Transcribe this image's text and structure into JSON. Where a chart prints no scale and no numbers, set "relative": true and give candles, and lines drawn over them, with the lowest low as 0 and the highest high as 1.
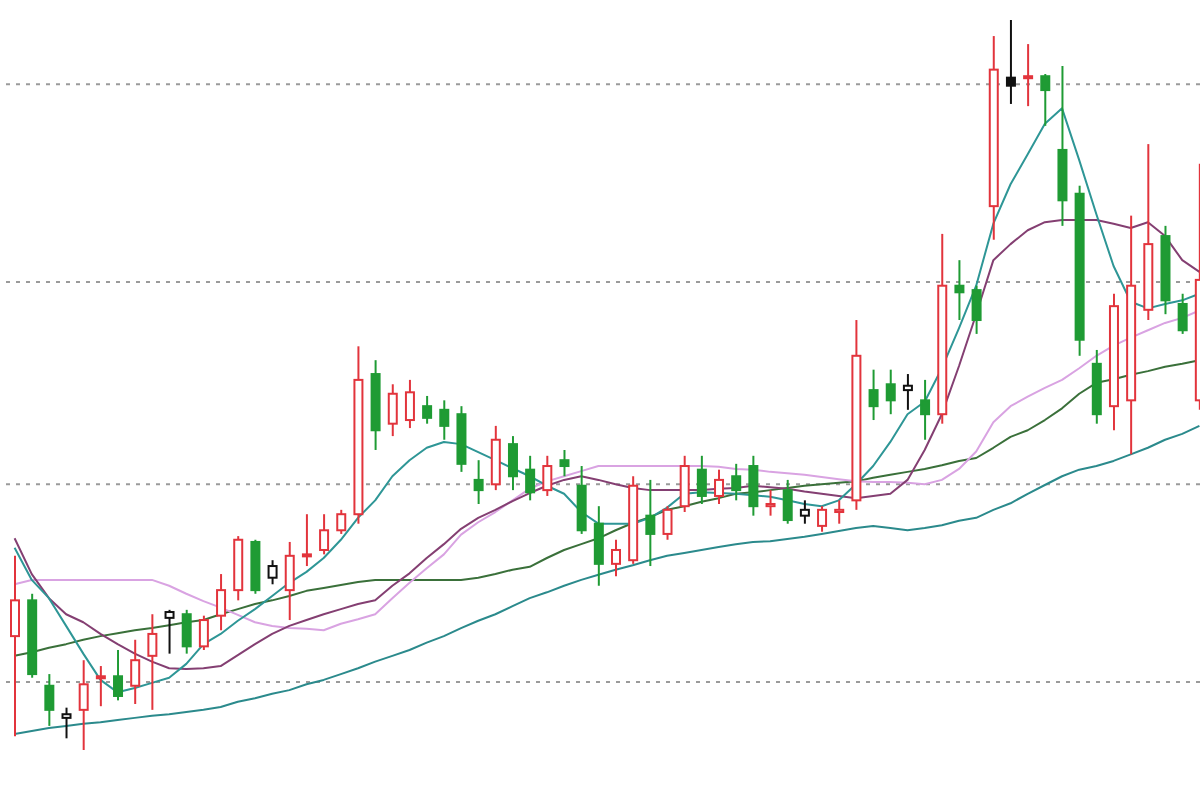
{
  "chart_data": {
    "type": "candlestick",
    "relative": true,
    "tick_labels": false,
    "ref_lines": [
      {
        "axis": "y",
        "value": 0.912,
        "label": null,
        "color": "#9a9a9a",
        "line_style": "dotted"
      },
      {
        "axis": "y",
        "value": 0.641,
        "label": null,
        "color": "#9a9a9a",
        "line_style": "dotted"
      },
      {
        "axis": "y",
        "value": 0.364,
        "label": null,
        "color": "#9a9a9a",
        "line_style": "dotted"
      },
      {
        "axis": "y",
        "value": 0.093,
        "label": null,
        "color": "#9a9a9a",
        "line_style": "dotted"
      }
    ],
    "categories": [
      null,
      null,
      null,
      null,
      null,
      null,
      null,
      null,
      null,
      null,
      null,
      null,
      null,
      null,
      null,
      null,
      null,
      null,
      null,
      null,
      null,
      null,
      null,
      null,
      null,
      null,
      null,
      null,
      null,
      null,
      null,
      null,
      null,
      null,
      null,
      null,
      null,
      null,
      null,
      null,
      null,
      null,
      null,
      null,
      null,
      null,
      null,
      null,
      null,
      null,
      null,
      null,
      null,
      null,
      null,
      null,
      null,
      null,
      null,
      null,
      null,
      null,
      null,
      null,
      null,
      null,
      null,
      null,
      null,
      null
    ],
    "ohlc": [
      [
        0.156,
        0.266,
        0.019,
        0.205
      ],
      [
        0.205,
        0.214,
        0.099,
        0.104
      ],
      [
        0.088,
        0.104,
        0.033,
        0.055
      ],
      [
        0.044,
        0.058,
        0.016,
        0.049
      ],
      [
        0.055,
        0.123,
        0,
        0.09
      ],
      [
        0.099,
        0.115,
        0.06,
        0.101
      ],
      [
        0.101,
        0.137,
        0.068,
        0.074
      ],
      [
        0.088,
        0.151,
        0.063,
        0.123
      ],
      [
        0.129,
        0.186,
        0.055,
        0.159
      ],
      [
        0.181,
        0.192,
        0.132,
        0.189
      ],
      [
        0.186,
        0.192,
        0.132,
        0.142
      ],
      [
        0.142,
        0.184,
        0.137,
        0.178
      ],
      [
        0.184,
        0.241,
        0.164,
        0.219
      ],
      [
        0.219,
        0.293,
        0.205,
        0.288
      ],
      [
        0.285,
        0.288,
        0.214,
        0.219
      ],
      [
        0.236,
        0.26,
        0.227,
        0.252
      ],
      [
        0.219,
        0.285,
        0.178,
        0.266
      ],
      [
        0.266,
        0.323,
        0.252,
        0.268
      ],
      [
        0.274,
        0.323,
        0.268,
        0.301
      ],
      [
        0.301,
        0.329,
        0.296,
        0.323
      ],
      [
        0.323,
        0.553,
        0.31,
        0.507
      ],
      [
        0.515,
        0.534,
        0.411,
        0.438
      ],
      [
        0.447,
        0.501,
        0.43,
        0.488
      ],
      [
        0.452,
        0.507,
        0.441,
        0.49
      ],
      [
        0.471,
        0.485,
        0.447,
        0.455
      ],
      [
        0.466,
        0.479,
        0.425,
        0.444
      ],
      [
        0.46,
        0.471,
        0.381,
        0.392
      ],
      [
        0.37,
        0.397,
        0.337,
        0.356
      ],
      [
        0.364,
        0.444,
        0.356,
        0.425
      ],
      [
        0.419,
        0.43,
        0.356,
        0.375
      ],
      [
        0.384,
        0.403,
        0.342,
        0.353
      ],
      [
        0.356,
        0.403,
        0.348,
        0.389
      ],
      [
        0.397,
        0.411,
        0.375,
        0.389
      ],
      [
        0.362,
        0.389,
        0.296,
        0.301
      ],
      [
        0.31,
        0.334,
        0.225,
        0.255
      ],
      [
        0.255,
        0.288,
        0.238,
        0.274
      ],
      [
        0.26,
        0.375,
        0.255,
        0.362
      ],
      [
        0.321,
        0.37,
        0.252,
        0.296
      ],
      [
        0.296,
        0.334,
        0.288,
        0.329
      ],
      [
        0.334,
        0.403,
        0.326,
        0.389
      ],
      [
        0.384,
        0.403,
        0.337,
        0.348
      ],
      [
        0.348,
        0.384,
        0.337,
        0.37
      ],
      [
        0.375,
        0.392,
        0.342,
        0.356
      ],
      [
        0.389,
        0.403,
        0.321,
        0.334
      ],
      [
        0.334,
        0.356,
        0.321,
        0.337
      ],
      [
        0.356,
        0.37,
        0.31,
        0.315
      ],
      [
        0.321,
        0.342,
        0.31,
        0.329
      ],
      [
        0.307,
        0.334,
        0.299,
        0.329
      ],
      [
        0.326,
        0.342,
        0.31,
        0.329
      ],
      [
        0.342,
        0.589,
        0.329,
        0.54
      ],
      [
        0.493,
        0.521,
        0.452,
        0.471
      ],
      [
        0.501,
        0.521,
        0.46,
        0.479
      ],
      [
        0.493,
        0.515,
        0.466,
        0.499
      ],
      [
        0.479,
        0.507,
        0.425,
        0.46
      ],
      [
        0.46,
        0.707,
        0.447,
        0.636
      ],
      [
        0.636,
        0.671,
        0.589,
        0.627
      ],
      [
        0.63,
        0.636,
        0.57,
        0.589
      ],
      [
        0.745,
        0.978,
        0.699,
        0.932
      ],
      [
        0.921,
        1,
        0.885,
        0.91
      ],
      [
        0.921,
        0.967,
        0.882,
        0.923
      ],
      [
        0.923,
        0.926,
        0.855,
        0.904
      ],
      [
        0.822,
        0.937,
        0.718,
        0.753
      ],
      [
        0.762,
        0.773,
        0.54,
        0.562
      ],
      [
        0.529,
        0.548,
        0.447,
        0.46
      ],
      [
        0.471,
        0.625,
        0.438,
        0.608
      ],
      [
        0.479,
        0.732,
        0.405,
        0.636
      ],
      [
        0.603,
        0.83,
        0.589,
        0.693
      ],
      [
        0.704,
        0.718,
        0.597,
        0.616
      ],
      [
        0.611,
        0.625,
        0.57,
        0.575
      ],
      [
        0.479,
        0.803,
        0.466,
        0.644
      ]
    ],
    "colors": [
      "#e2343c",
      "#1f9b34",
      "#1f9b34",
      "#111111",
      "#e2343c",
      "#e2343c",
      "#1f9b34",
      "#e2343c",
      "#e2343c",
      "#111111",
      "#1f9b34",
      "#e2343c",
      "#e2343c",
      "#e2343c",
      "#1f9b34",
      "#111111",
      "#e2343c",
      "#e2343c",
      "#e2343c",
      "#e2343c",
      "#e2343c",
      "#1f9b34",
      "#e2343c",
      "#e2343c",
      "#1f9b34",
      "#1f9b34",
      "#1f9b34",
      "#1f9b34",
      "#e2343c",
      "#1f9b34",
      "#1f9b34",
      "#e2343c",
      "#1f9b34",
      "#1f9b34",
      "#1f9b34",
      "#e2343c",
      "#e2343c",
      "#1f9b34",
      "#e2343c",
      "#e2343c",
      "#1f9b34",
      "#e2343c",
      "#1f9b34",
      "#1f9b34",
      "#e2343c",
      "#1f9b34",
      "#111111",
      "#e2343c",
      "#e2343c",
      "#e2343c",
      "#1f9b34",
      "#1f9b34",
      "#111111",
      "#1f9b34",
      "#e2343c",
      "#1f9b34",
      "#1f9b34",
      "#e2343c",
      "#111111",
      "#e2343c",
      "#1f9b34",
      "#1f9b34",
      "#1f9b34",
      "#1f9b34",
      "#e2343c",
      "#e2343c",
      "#e2343c",
      "#1f9b34",
      "#1f9b34",
      "#e2343c"
    ],
    "series": [
      {
        "type": "line",
        "color": "#2b8a8c",
        "values": [
          0.022,
          0.026,
          0.03,
          0.033,
          0.036,
          0.038,
          0.041,
          0.044,
          0.047,
          0.049,
          0.052,
          0.055,
          0.059,
          0.066,
          0.071,
          0.077,
          0.082,
          0.09,
          0.096,
          0.104,
          0.112,
          0.121,
          0.129,
          0.137,
          0.147,
          0.156,
          0.167,
          0.177,
          0.186,
          0.197,
          0.208,
          0.216,
          0.225,
          0.233,
          0.24,
          0.247,
          0.253,
          0.26,
          0.266,
          0.27,
          0.274,
          0.278,
          0.282,
          0.285,
          0.286,
          0.289,
          0.292,
          0.296,
          0.3,
          0.304,
          0.307,
          0.304,
          0.301,
          0.304,
          0.308,
          0.314,
          0.318,
          0.329,
          0.338,
          0.351,
          0.363,
          0.375,
          0.384,
          0.389,
          0.396,
          0.405,
          0.414,
          0.425,
          0.433,
          0.444
        ]
      },
      {
        "type": "line",
        "color": "#3a703a",
        "values": [
          0.129,
          0.134,
          0.14,
          0.145,
          0.151,
          0.156,
          0.16,
          0.164,
          0.167,
          0.171,
          0.175,
          0.178,
          0.186,
          0.193,
          0.2,
          0.205,
          0.211,
          0.218,
          0.222,
          0.226,
          0.23,
          0.233,
          0.233,
          0.233,
          0.233,
          0.233,
          0.233,
          0.236,
          0.241,
          0.247,
          0.251,
          0.263,
          0.274,
          0.282,
          0.29,
          0.301,
          0.311,
          0.319,
          0.329,
          0.334,
          0.34,
          0.345,
          0.351,
          0.353,
          0.356,
          0.359,
          0.362,
          0.364,
          0.366,
          0.368,
          0.373,
          0.377,
          0.381,
          0.385,
          0.39,
          0.396,
          0.4,
          0.414,
          0.429,
          0.438,
          0.452,
          0.468,
          0.488,
          0.503,
          0.508,
          0.514,
          0.519,
          0.525,
          0.529,
          0.534
        ]
      },
      {
        "type": "line",
        "color": "#d9a3e2",
        "values": [
          0.227,
          0.233,
          0.233,
          0.233,
          0.233,
          0.233,
          0.233,
          0.233,
          0.233,
          0.225,
          0.214,
          0.204,
          0.195,
          0.185,
          0.175,
          0.17,
          0.167,
          0.166,
          0.164,
          0.173,
          0.179,
          0.186,
          0.208,
          0.229,
          0.249,
          0.268,
          0.295,
          0.312,
          0.326,
          0.342,
          0.358,
          0.368,
          0.375,
          0.382,
          0.389,
          0.389,
          0.389,
          0.389,
          0.389,
          0.389,
          0.389,
          0.388,
          0.385,
          0.384,
          0.381,
          0.379,
          0.377,
          0.374,
          0.371,
          0.368,
          0.367,
          0.367,
          0.366,
          0.364,
          0.37,
          0.385,
          0.409,
          0.449,
          0.471,
          0.484,
          0.496,
          0.507,
          0.523,
          0.54,
          0.554,
          0.565,
          0.575,
          0.585,
          0.592,
          0.602
        ]
      },
      {
        "type": "line",
        "color": "#843f72",
        "values": [
          0.29,
          0.241,
          0.208,
          0.186,
          0.175,
          0.159,
          0.145,
          0.132,
          0.121,
          0.112,
          0.111,
          0.112,
          0.115,
          0.13,
          0.145,
          0.159,
          0.17,
          0.178,
          0.186,
          0.193,
          0.2,
          0.205,
          0.225,
          0.242,
          0.263,
          0.282,
          0.303,
          0.318,
          0.329,
          0.341,
          0.352,
          0.362,
          0.37,
          0.375,
          0.37,
          0.364,
          0.359,
          0.356,
          0.356,
          0.356,
          0.356,
          0.358,
          0.359,
          0.362,
          0.36,
          0.358,
          0.354,
          0.351,
          0.348,
          0.345,
          0.348,
          0.351,
          0.37,
          0.411,
          0.46,
          0.526,
          0.597,
          0.671,
          0.693,
          0.712,
          0.723,
          0.726,
          0.726,
          0.726,
          0.721,
          0.715,
          0.723,
          0.704,
          0.671,
          0.655
        ]
      },
      {
        "type": "line",
        "color": "#2e9696",
        "values": [
          0.277,
          0.233,
          0.208,
          0.17,
          0.132,
          0.096,
          0.079,
          0.085,
          0.092,
          0.099,
          0.118,
          0.145,
          0.159,
          0.177,
          0.193,
          0.211,
          0.229,
          0.244,
          0.263,
          0.288,
          0.318,
          0.342,
          0.375,
          0.397,
          0.414,
          0.422,
          0.419,
          0.408,
          0.397,
          0.386,
          0.375,
          0.362,
          0.351,
          0.326,
          0.31,
          0.31,
          0.31,
          0.318,
          0.332,
          0.351,
          0.353,
          0.352,
          0.351,
          0.349,
          0.347,
          0.342,
          0.337,
          0.334,
          0.342,
          0.364,
          0.389,
          0.422,
          0.46,
          0.477,
          0.523,
          0.578,
          0.636,
          0.721,
          0.775,
          0.816,
          0.858,
          0.879,
          0.808,
          0.734,
          0.663,
          0.614,
          0.605,
          0.611,
          0.616,
          0.625
        ]
      }
    ]
  }
}
